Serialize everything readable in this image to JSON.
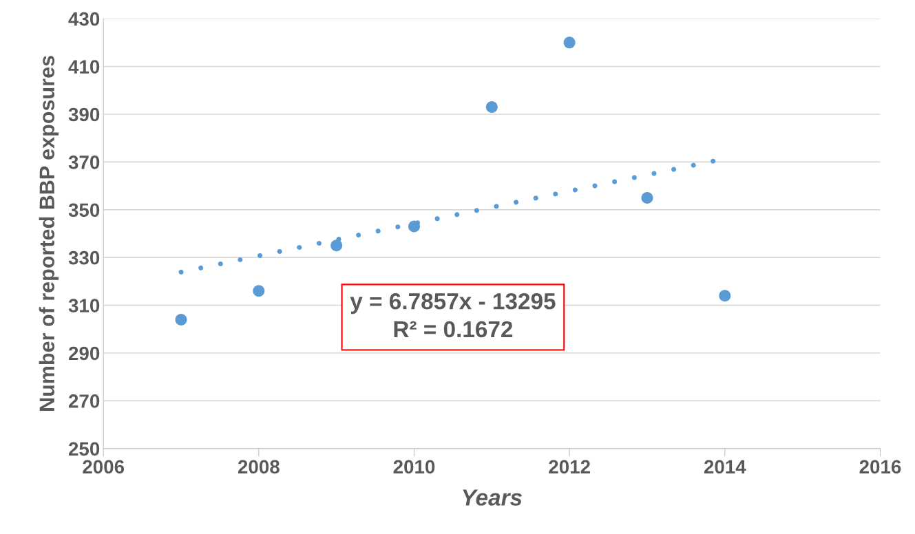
{
  "chart_data": {
    "type": "scatter",
    "xlabel": "Years",
    "ylabel": "Number of reported BBP exposures",
    "series": [
      {
        "color": "#5b9bd5",
        "marker": "circle",
        "x": [
          2007,
          2008,
          2009,
          2010,
          2011,
          2012,
          2013,
          2014
        ],
        "values": [
          304,
          316,
          335,
          343,
          393,
          420,
          355,
          314
        ]
      },
      {
        "type": "line",
        "color": "#5b9bd5",
        "marker": "none",
        "line_style": "dotted",
        "x": [
          2007,
          2013.9
        ],
        "values": [
          323.9,
          370.7
        ]
      }
    ],
    "annotations": [
      "y = 6.7857x - 13295\nR² = 0.1672"
    ],
    "xlim": [
      2006,
      2016
    ],
    "xticks": [
      2006,
      2008,
      2010,
      2012,
      2014,
      2016
    ],
    "ylim": [
      250,
      430
    ],
    "yticks": [
      250,
      270,
      290,
      310,
      330,
      350,
      370,
      390,
      410,
      430
    ],
    "grid": "y",
    "legend": false
  }
}
